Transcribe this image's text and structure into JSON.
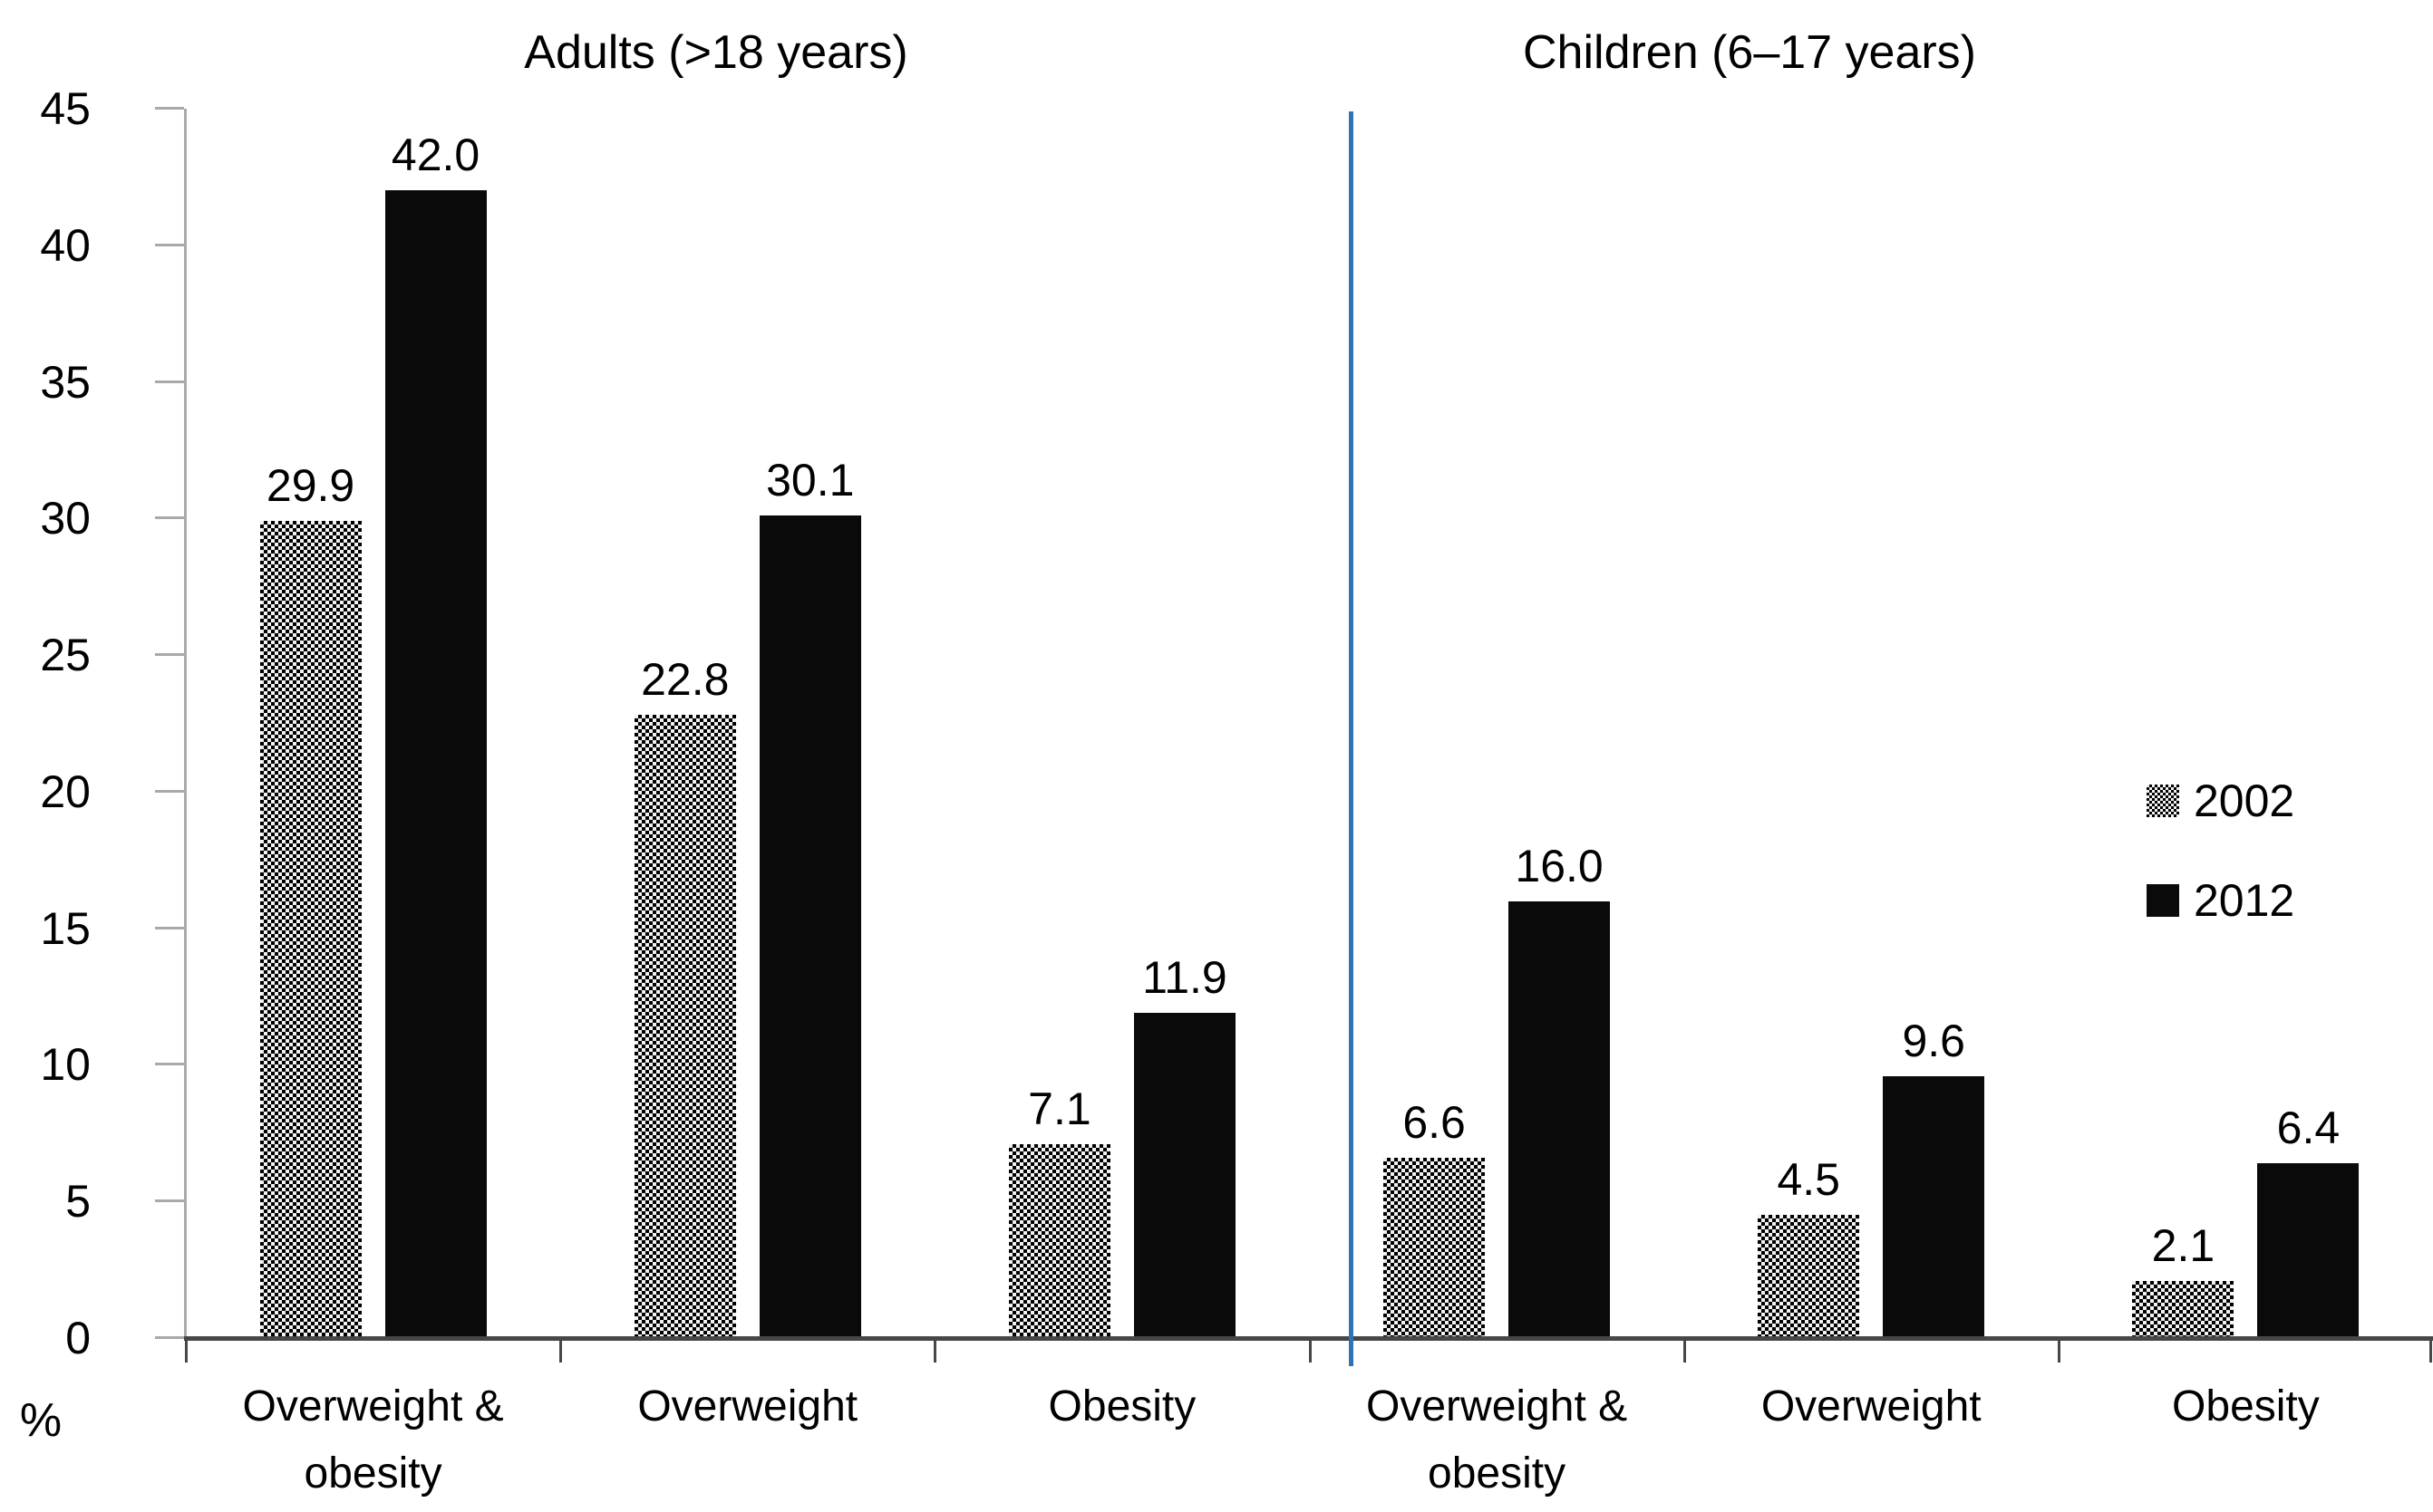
{
  "chart_data": {
    "type": "bar",
    "title": "",
    "sections": [
      {
        "title": "Adults (>18 years)"
      },
      {
        "title": "Children (6–17 years)"
      }
    ],
    "ylabel": "%",
    "ylim": [
      0,
      45
    ],
    "ytick_step": 5,
    "ytick_labels": [
      "0",
      "5",
      "10",
      "15",
      "20",
      "25",
      "30",
      "35",
      "40",
      "45"
    ],
    "grid": false,
    "legend_position": "middle-right",
    "section_divider": true,
    "categories": [
      {
        "section": 0,
        "label": "Overweight & obesity"
      },
      {
        "section": 0,
        "label": "Overweight"
      },
      {
        "section": 0,
        "label": "Obesity"
      },
      {
        "section": 1,
        "label": "Overweight & obesity"
      },
      {
        "section": 1,
        "label": "Overweight"
      },
      {
        "section": 1,
        "label": "Obesity"
      }
    ],
    "series": [
      {
        "name": "2002",
        "style": "pattern",
        "values": [
          29.9,
          22.8,
          7.1,
          6.6,
          4.5,
          2.1
        ],
        "value_labels": [
          "29.9",
          "22.8",
          "7.1",
          "6.6",
          "4.5",
          "2.1"
        ]
      },
      {
        "name": "2012",
        "style": "solid",
        "values": [
          42.0,
          30.1,
          11.9,
          16.0,
          9.6,
          6.4
        ],
        "value_labels": [
          "42.0",
          "30.1",
          "11.9",
          "16.0",
          "9.6",
          "6.4"
        ]
      }
    ]
  },
  "colors": {
    "bar_2012": "#0a0a0a",
    "bar_2002_pattern": "#000000 on #f2f2f2",
    "section_divider": "#2e75b6",
    "y_axis": "#a9a9a9",
    "x_axis": "#474747",
    "text": "#000000"
  }
}
